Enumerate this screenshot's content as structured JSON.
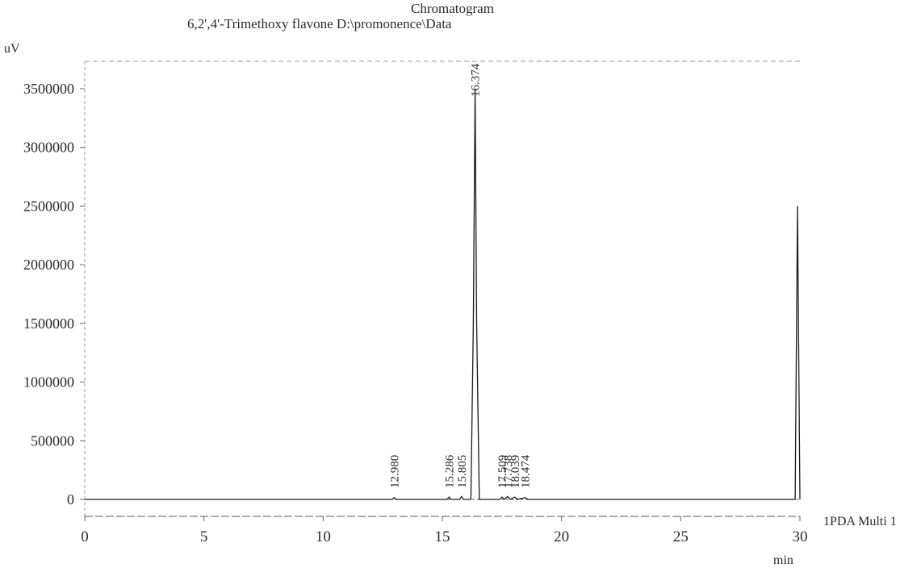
{
  "chart_data": {
    "type": "line",
    "title": "Chromatogram",
    "subtitle": "6,2',4'-Trimethoxy flavone D:\\promonence\\Data",
    "xlabel": "min",
    "ylabel": "uV",
    "xlim": [
      0,
      30
    ],
    "ylim": [
      -200000,
      3700000
    ],
    "x_ticks": [
      "0",
      "5",
      "10",
      "15",
      "20",
      "25",
      "30"
    ],
    "y_ticks": [
      "0",
      "500000",
      "1000000",
      "1500000",
      "2000000",
      "2500000",
      "3000000",
      "3500000"
    ],
    "legend": "1PDA Multi 1",
    "grid": false,
    "peaks": [
      {
        "rt": 12.98,
        "label": "12.980",
        "height": 15000
      },
      {
        "rt": 15.286,
        "label": "15.286",
        "height": 20000
      },
      {
        "rt": 15.805,
        "label": "15.805",
        "height": 25000
      },
      {
        "rt": 16.374,
        "label": "16.374",
        "height": 3500000
      },
      {
        "rt": 17.509,
        "label": "17.509",
        "height": 20000
      },
      {
        "rt": 17.738,
        "label": "17.738",
        "height": 25000
      },
      {
        "rt": 18.039,
        "label": "18.039",
        "height": 20000
      },
      {
        "rt": 18.474,
        "label": "18.474",
        "height": 15000
      }
    ],
    "series": [
      {
        "name": "1PDA Multi 1",
        "x": [
          0,
          5,
          10,
          12.9,
          12.98,
          13.06,
          15.2,
          15.286,
          15.37,
          15.72,
          15.805,
          15.89,
          16.2,
          16.3,
          16.374,
          16.44,
          16.55,
          17.4,
          17.509,
          17.6,
          17.738,
          17.85,
          18.039,
          18.15,
          18.474,
          18.6,
          20,
          25,
          29.8,
          29.9,
          30
        ],
        "y": [
          0,
          0,
          0,
          0,
          15000,
          0,
          0,
          20000,
          0,
          0,
          25000,
          0,
          0,
          1500000,
          3500000,
          1500000,
          0,
          0,
          20000,
          0,
          25000,
          0,
          20000,
          0,
          15000,
          0,
          0,
          0,
          0,
          2500000,
          0
        ]
      }
    ]
  }
}
